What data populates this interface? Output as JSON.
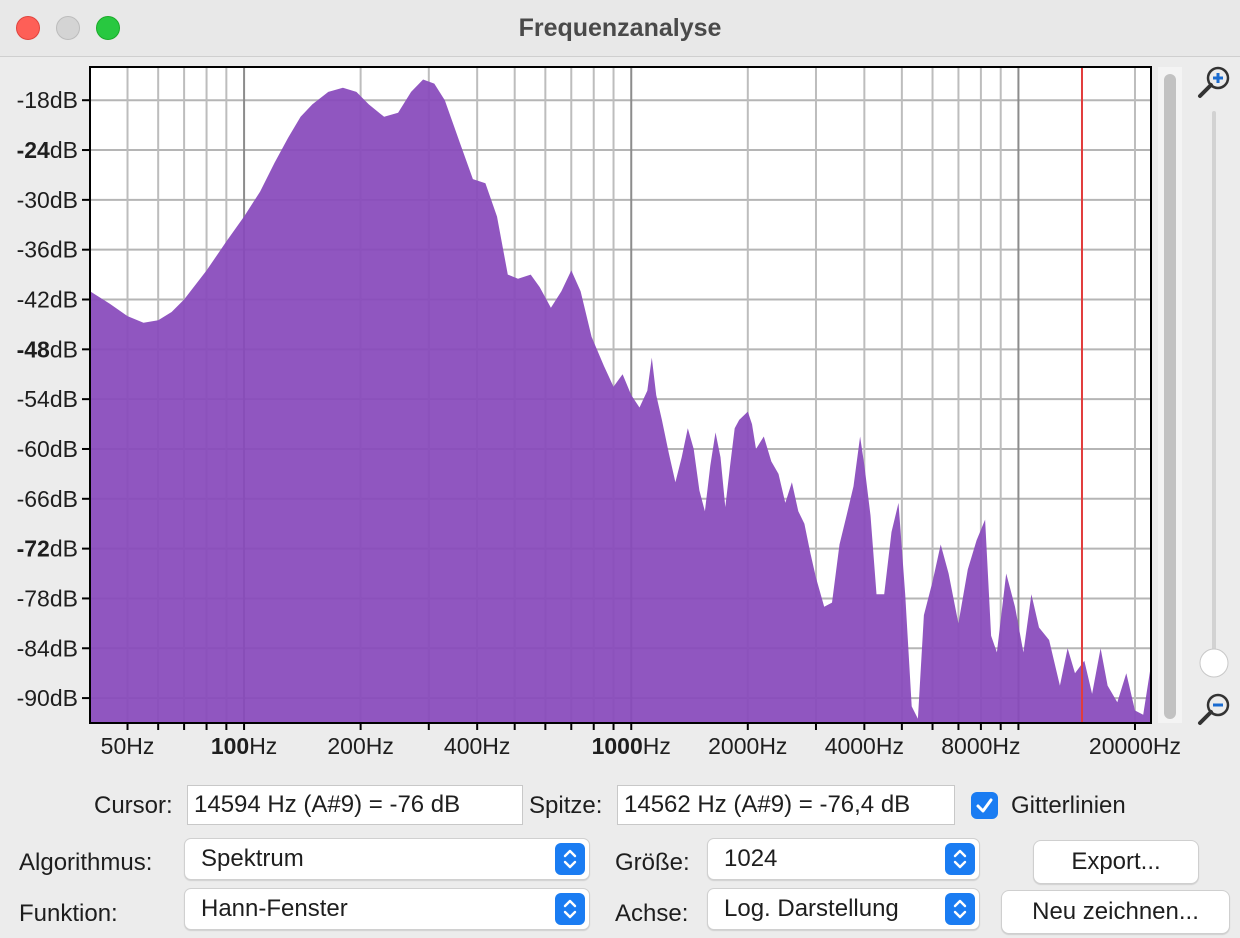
{
  "window": {
    "title": "Frequenzanalyse"
  },
  "chart_data": {
    "type": "area",
    "x_scale": "log",
    "xlim": [
      40,
      22000
    ],
    "ylim": [
      -93,
      -14
    ],
    "grid": true,
    "y_ticks": [
      {
        "value": -18,
        "pre": "-18",
        "bold": false
      },
      {
        "value": -24,
        "pre": "-24",
        "bold": true
      },
      {
        "value": -30,
        "pre": "-30",
        "bold": false
      },
      {
        "value": -36,
        "pre": "-36",
        "bold": false
      },
      {
        "value": -42,
        "pre": "-42",
        "bold": false
      },
      {
        "value": -48,
        "pre": "-48",
        "bold": true
      },
      {
        "value": -54,
        "pre": "-54",
        "bold": false
      },
      {
        "value": -60,
        "pre": "-60",
        "bold": false
      },
      {
        "value": -66,
        "pre": "-66",
        "bold": false
      },
      {
        "value": -72,
        "pre": "-72",
        "bold": true
      },
      {
        "value": -78,
        "pre": "-78",
        "bold": false
      },
      {
        "value": -84,
        "pre": "-84",
        "bold": false
      },
      {
        "value": -90,
        "pre": "-90",
        "bold": false
      }
    ],
    "y_unit": "dB",
    "x_ticks": [
      {
        "value": 50,
        "pre": "50",
        "bold": false
      },
      {
        "value": 100,
        "pre": "100",
        "bold": true
      },
      {
        "value": 200,
        "pre": "200",
        "bold": false
      },
      {
        "value": 400,
        "pre": "400",
        "bold": false
      },
      {
        "value": 1000,
        "pre": "1000",
        "bold": true
      },
      {
        "value": 2000,
        "pre": "2000",
        "bold": false
      },
      {
        "value": 4000,
        "pre": "4000",
        "bold": false
      },
      {
        "value": 8000,
        "pre": "8000",
        "bold": false
      },
      {
        "value": 20000,
        "pre": "20000",
        "bold": false
      }
    ],
    "x_unit": "Hz",
    "major_grid_x": [
      100,
      1000,
      10000
    ],
    "minor_grid_x": [
      50,
      60,
      70,
      80,
      90,
      200,
      300,
      400,
      500,
      600,
      700,
      800,
      900,
      2000,
      3000,
      4000,
      5000,
      6000,
      7000,
      8000,
      9000,
      20000
    ],
    "cursor_hz": 14594,
    "fill_color": "#8849bb",
    "cursor_color": "#e23c3c",
    "envelope": [
      [
        40,
        -41.0
      ],
      [
        45,
        -42.5
      ],
      [
        50,
        -44.0
      ],
      [
        55,
        -44.8
      ],
      [
        60,
        -44.5
      ],
      [
        65,
        -43.5
      ],
      [
        70,
        -42.0
      ],
      [
        80,
        -38.5
      ],
      [
        90,
        -35.0
      ],
      [
        100,
        -32.0
      ],
      [
        110,
        -29.0
      ],
      [
        120,
        -25.5
      ],
      [
        130,
        -22.5
      ],
      [
        140,
        -20.0
      ],
      [
        150,
        -18.5
      ],
      [
        165,
        -17.0
      ],
      [
        180,
        -16.5
      ],
      [
        195,
        -17.0
      ],
      [
        210,
        -18.5
      ],
      [
        230,
        -20.0
      ],
      [
        250,
        -19.5
      ],
      [
        270,
        -17.0
      ],
      [
        290,
        -15.5
      ],
      [
        310,
        -16.0
      ],
      [
        330,
        -18.0
      ],
      [
        360,
        -23.0
      ],
      [
        390,
        -27.5
      ],
      [
        420,
        -28.0
      ],
      [
        450,
        -32.0
      ],
      [
        480,
        -39.0
      ],
      [
        510,
        -39.5
      ],
      [
        550,
        -39.0
      ],
      [
        580,
        -40.5
      ],
      [
        620,
        -43.0
      ],
      [
        660,
        -41.0
      ],
      [
        700,
        -38.5
      ],
      [
        740,
        -41.0
      ],
      [
        790,
        -46.5
      ],
      [
        850,
        -50.0
      ],
      [
        900,
        -52.5
      ],
      [
        950,
        -51.0
      ],
      [
        1000,
        -53.5
      ],
      [
        1050,
        -55.0
      ],
      [
        1100,
        -53.0
      ],
      [
        1130,
        -49.0
      ],
      [
        1160,
        -53.5
      ],
      [
        1200,
        -56.5
      ],
      [
        1250,
        -60.5
      ],
      [
        1300,
        -64.0
      ],
      [
        1350,
        -61.0
      ],
      [
        1400,
        -57.5
      ],
      [
        1450,
        -60.0
      ],
      [
        1500,
        -65.0
      ],
      [
        1550,
        -67.5
      ],
      [
        1600,
        -62.0
      ],
      [
        1650,
        -58.0
      ],
      [
        1700,
        -61.0
      ],
      [
        1750,
        -67.0
      ],
      [
        1800,
        -62.0
      ],
      [
        1850,
        -57.5
      ],
      [
        1900,
        -56.5
      ],
      [
        2000,
        -55.5
      ],
      [
        2050,
        -57.0
      ],
      [
        2100,
        -60.0
      ],
      [
        2200,
        -58.5
      ],
      [
        2300,
        -61.5
      ],
      [
        2400,
        -63.0
      ],
      [
        2500,
        -66.5
      ],
      [
        2600,
        -64.0
      ],
      [
        2700,
        -67.5
      ],
      [
        2800,
        -69.0
      ],
      [
        2900,
        -72.5
      ],
      [
        3000,
        -75.5
      ],
      [
        3150,
        -79.0
      ],
      [
        3300,
        -78.5
      ],
      [
        3450,
        -71.5
      ],
      [
        3600,
        -68.0
      ],
      [
        3750,
        -64.5
      ],
      [
        3900,
        -58.5
      ],
      [
        4000,
        -62.0
      ],
      [
        4150,
        -68.0
      ],
      [
        4300,
        -77.5
      ],
      [
        4500,
        -77.5
      ],
      [
        4700,
        -70.0
      ],
      [
        4900,
        -66.5
      ],
      [
        5100,
        -77.5
      ],
      [
        5300,
        -91.0
      ],
      [
        5500,
        -92.5
      ],
      [
        5700,
        -80.0
      ],
      [
        6000,
        -76.0
      ],
      [
        6300,
        -71.5
      ],
      [
        6600,
        -75.0
      ],
      [
        7000,
        -81.0
      ],
      [
        7400,
        -74.5
      ],
      [
        7800,
        -71.0
      ],
      [
        8200,
        -68.5
      ],
      [
        8500,
        -82.5
      ],
      [
        8800,
        -84.5
      ],
      [
        9300,
        -75.0
      ],
      [
        9800,
        -79.0
      ],
      [
        10300,
        -84.5
      ],
      [
        10800,
        -77.5
      ],
      [
        11300,
        -81.5
      ],
      [
        12000,
        -83.0
      ],
      [
        12800,
        -88.5
      ],
      [
        13400,
        -84.0
      ],
      [
        14000,
        -87.0
      ],
      [
        14800,
        -85.5
      ],
      [
        15500,
        -89.5
      ],
      [
        16300,
        -84.0
      ],
      [
        17000,
        -88.5
      ],
      [
        18000,
        -90.5
      ],
      [
        19000,
        -87.0
      ],
      [
        20000,
        -91.5
      ],
      [
        21000,
        -92.0
      ],
      [
        22000,
        -86.0
      ]
    ]
  },
  "cursor": {
    "label": "Cursor:",
    "value": "14594 Hz (A#9) = -76 dB"
  },
  "peak": {
    "label": "Spitze:",
    "value": "14562 Hz (A#9) = -76,4 dB"
  },
  "gridlines": {
    "label": "Gitterlinien",
    "checked": true
  },
  "algorithm": {
    "label": "Algorithmus:",
    "value": "Spektrum"
  },
  "size": {
    "label": "Größe:",
    "value": "1024"
  },
  "function": {
    "label": "Funktion:",
    "value": "Hann-Fenster"
  },
  "axis": {
    "label": "Achse:",
    "value": "Log. Darstellung"
  },
  "buttons": {
    "export": "Export...",
    "redraw": "Neu zeichnen..."
  },
  "icons": {
    "zoom_in": "zoom-in-icon",
    "zoom_out": "zoom-out-icon",
    "accent": "#1a7cf2"
  }
}
